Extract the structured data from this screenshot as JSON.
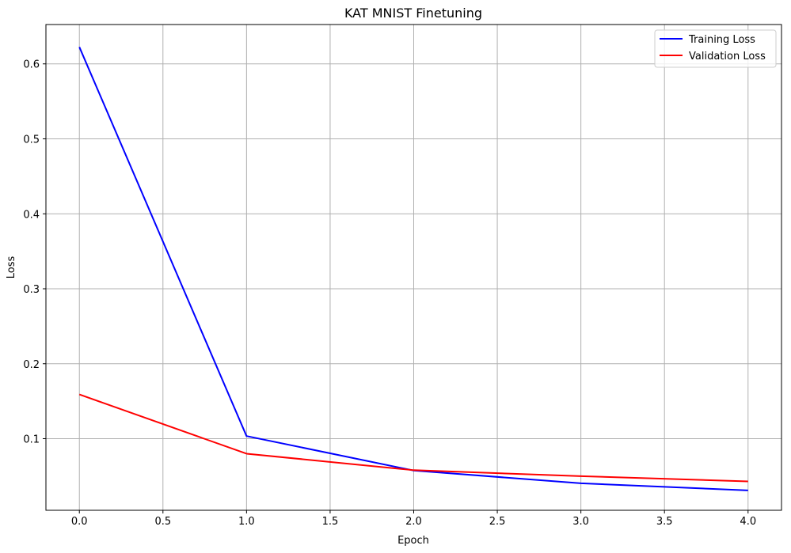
{
  "chart_data": {
    "type": "line",
    "title": "KAT MNIST Finetuning",
    "xlabel": "Epoch",
    "ylabel": "Loss",
    "xlim": [
      -0.2,
      4.2
    ],
    "ylim": [
      0.0045,
      0.6525
    ],
    "xticks": [
      "0.0",
      "0.5",
      "1.0",
      "1.5",
      "2.0",
      "2.5",
      "3.0",
      "3.5",
      "4.0"
    ],
    "yticks": [
      "0.1",
      "0.2",
      "0.3",
      "0.4",
      "0.5",
      "0.6"
    ],
    "grid": true,
    "legend_position": "top-right",
    "x": [
      0,
      1,
      2,
      3,
      4
    ],
    "series": [
      {
        "name": "Training Loss",
        "color": "#0000ff",
        "values": [
          0.6225,
          0.1035,
          0.0575,
          0.0405,
          0.031
        ]
      },
      {
        "name": "Validation Loss",
        "color": "#ff0000",
        "values": [
          0.159,
          0.08,
          0.058,
          0.05,
          0.043
        ]
      }
    ]
  }
}
